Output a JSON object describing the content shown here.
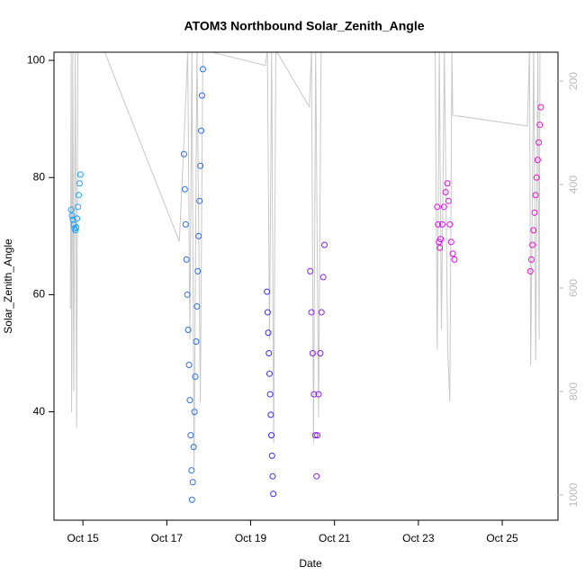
{
  "chart_data": {
    "type": "scatter",
    "title": "ATOM3 Northbound Solar_Zenith_Angle",
    "xlabel": "Date",
    "ylabel": "Solar_Zenith_Angle",
    "xlim": [
      14.31,
      26.33
    ],
    "xticks": [
      {
        "value": 15,
        "label": "Oct 15"
      },
      {
        "value": 17,
        "label": "Oct 17"
      },
      {
        "value": 19,
        "label": "Oct 19"
      },
      {
        "value": 21,
        "label": "Oct 21"
      },
      {
        "value": 23,
        "label": "Oct 23"
      },
      {
        "value": 25,
        "label": "Oct 25"
      }
    ],
    "ylim": [
      21.5,
      101.4
    ],
    "yticks": [
      40,
      60,
      80,
      100
    ],
    "y2lim": [
      1048.7,
      144.3
    ],
    "y2ticks": [
      200,
      400,
      600,
      800,
      1000
    ],
    "series": [
      {
        "type": "line",
        "axis": "y2",
        "color": "#c8c8c8",
        "x": [
          14.7,
          14.72,
          14.73,
          14.76,
          14.78,
          14.82,
          14.85,
          14.88,
          15.5,
          17.3,
          17.42,
          17.5,
          17.55,
          17.6,
          17.65,
          17.72,
          17.8,
          17.86,
          19.35,
          19.4,
          19.45,
          19.5,
          19.55,
          19.6,
          20.4,
          20.45,
          20.5,
          20.55,
          20.62,
          20.68,
          23.4,
          23.45,
          23.5,
          23.55,
          23.62,
          23.7,
          23.75,
          23.8,
          23.82,
          25.6,
          25.65,
          25.68,
          25.75,
          25.8,
          25.85,
          25.88,
          25.9
        ],
        "values": [
          640,
          140,
          840,
          140,
          800,
          140,
          870,
          140,
          140,
          510,
          300,
          140,
          700,
          140,
          950,
          140,
          820,
          140,
          170,
          140,
          700,
          140,
          900,
          140,
          250,
          140,
          900,
          140,
          850,
          140,
          140,
          720,
          140,
          680,
          140,
          720,
          820,
          140,
          266,
          287,
          140,
          750,
          140,
          740,
          140,
          700,
          140
        ]
      },
      {
        "type": "scatter",
        "color": "#1aa3ff",
        "x": [
          14.72,
          14.74,
          14.76,
          14.78,
          14.8,
          14.82,
          14.84,
          14.86,
          14.88,
          14.9,
          14.92,
          14.94
        ],
        "values": [
          74.5,
          73.5,
          72.8,
          72,
          71.3,
          71,
          71.5,
          73,
          75,
          77,
          79,
          80.5
        ]
      },
      {
        "type": "scatter",
        "color": "#2b6fe8",
        "x": [
          17.41,
          17.43,
          17.45,
          17.47,
          17.49,
          17.51,
          17.53,
          17.55,
          17.57,
          17.59,
          17.6,
          17.62,
          17.64,
          17.66,
          17.68,
          17.7,
          17.72,
          17.74,
          17.76,
          17.78,
          17.8,
          17.82,
          17.84,
          17.86
        ],
        "values": [
          84,
          78,
          72,
          66,
          60,
          54,
          48,
          42,
          36,
          30,
          25,
          28,
          34,
          40,
          46,
          52,
          58,
          64,
          70,
          76,
          82,
          88,
          94,
          98.5
        ]
      },
      {
        "type": "scatter",
        "color": "#3a2cf0",
        "x": [
          19.39,
          19.405,
          19.42,
          19.435,
          19.45,
          19.465,
          19.48,
          19.495,
          19.51,
          19.525,
          19.54
        ],
        "values": [
          60.5,
          57,
          53.5,
          50,
          46.5,
          43,
          39.5,
          36,
          32.5,
          29,
          26
        ]
      },
      {
        "type": "scatter",
        "color": "#8a1ff0",
        "x": [
          20.42,
          20.45,
          20.48,
          20.51,
          20.54,
          20.57,
          20.59,
          20.62,
          20.66,
          20.69,
          20.73,
          20.76
        ],
        "values": [
          64,
          57,
          50,
          43,
          36,
          29,
          36,
          43,
          50,
          57,
          63,
          68.5
        ]
      },
      {
        "type": "scatter",
        "color": "#dd11ee",
        "x": [
          23.45,
          23.47,
          23.49,
          23.51,
          23.53,
          23.57,
          23.61,
          23.65,
          23.69,
          23.72,
          23.75,
          23.78,
          23.82,
          23.86
        ],
        "values": [
          75,
          72,
          69,
          68,
          69.5,
          72,
          75,
          77.5,
          79,
          76,
          72,
          69,
          67,
          66
        ]
      },
      {
        "type": "scatter",
        "color": "#ee11cc",
        "x": [
          25.67,
          25.695,
          25.72,
          25.745,
          25.77,
          25.795,
          25.82,
          25.845,
          25.87,
          25.895,
          25.92
        ],
        "values": [
          64,
          66,
          68.5,
          71,
          74,
          77,
          80,
          83,
          86,
          89,
          92
        ]
      }
    ]
  }
}
